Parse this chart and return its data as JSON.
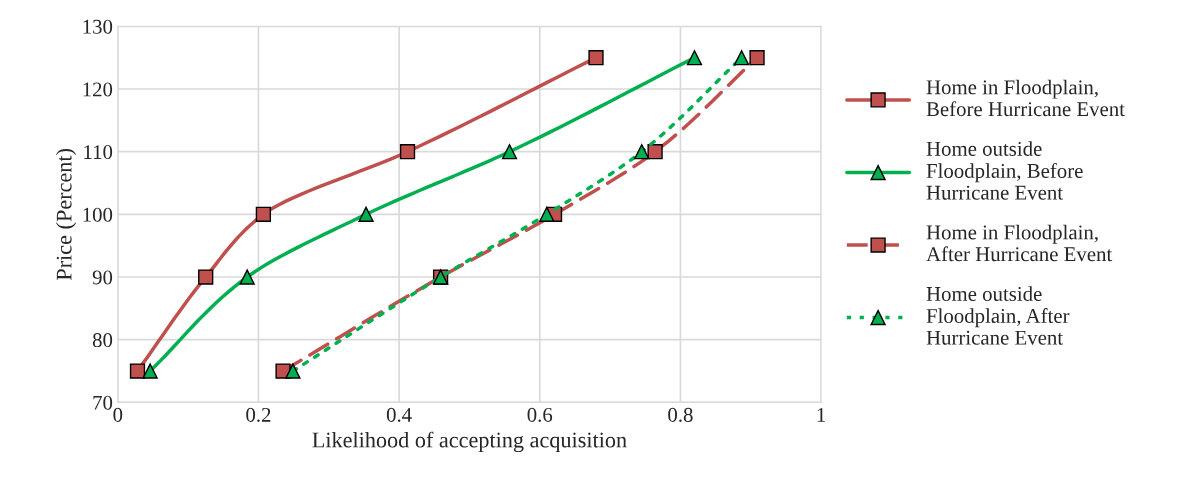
{
  "chart_data": {
    "type": "line",
    "xlabel": "Likelihood of accepting acquisition",
    "ylabel": "Price (Percent)",
    "xlim": [
      0,
      1
    ],
    "xticks": [
      0,
      0.2,
      0.4,
      0.6,
      0.8,
      1
    ],
    "ylim": [
      70,
      130
    ],
    "yticks": [
      70,
      80,
      90,
      100,
      110,
      120,
      130
    ],
    "grid": true,
    "legend": "right",
    "series": [
      {
        "name": "Home in Floodplain, Before Hurricane Event",
        "color": "#c0504d",
        "marker": "square",
        "line_style": "solid",
        "x": [
          0.028,
          0.125,
          0.207,
          0.412,
          0.68
        ],
        "values": [
          75,
          90,
          100,
          110,
          125
        ]
      },
      {
        "name": "Home outside Floodplain, Before Hurricane Event",
        "color": "#00b050",
        "marker": "triangle",
        "line_style": "solid",
        "x": [
          0.046,
          0.184,
          0.353,
          0.557,
          0.82
        ],
        "values": [
          75,
          90,
          100,
          110,
          125
        ]
      },
      {
        "name": "Home in Floodplain, After Hurricane Event",
        "color": "#c0504d",
        "marker": "square",
        "line_style": "dashed",
        "x": [
          0.235,
          0.459,
          0.621,
          0.764,
          0.909
        ],
        "values": [
          75,
          90,
          100,
          110,
          125
        ]
      },
      {
        "name": "Home outside Floodplain, After Hurricane Event",
        "color": "#00b050",
        "marker": "triangle",
        "line_style": "dotted",
        "x": [
          0.249,
          0.459,
          0.61,
          0.745,
          0.887
        ],
        "values": [
          75,
          90,
          100,
          110,
          125
        ]
      }
    ]
  }
}
